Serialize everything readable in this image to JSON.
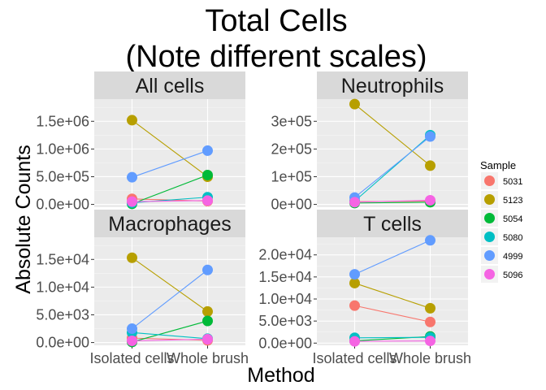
{
  "chart_data": {
    "type": "scatter",
    "title_lines": [
      "Total Cells",
      "(Note different scales)"
    ],
    "xlabel": "Method",
    "ylabel": "Absolute Counts",
    "categories": [
      "Isolated cells",
      "Whole brush"
    ],
    "legend": {
      "title": "Sample",
      "position": "right",
      "entries": [
        {
          "name": "5031",
          "color": "#F8766D"
        },
        {
          "name": "5123",
          "color": "#B79F00"
        },
        {
          "name": "5054",
          "color": "#00BA38"
        },
        {
          "name": "5080",
          "color": "#00BFC4"
        },
        {
          "name": "4999",
          "color": "#619CFF"
        },
        {
          "name": "5096",
          "color": "#F564E3"
        }
      ]
    },
    "panels": [
      {
        "title": "All cells",
        "ylim": [
          -50000,
          1900000
        ],
        "yticks": [
          0,
          500000,
          1000000,
          1500000
        ],
        "ytick_labels": [
          "0.0e+00",
          "5.0e+05",
          "1.0e+06",
          "1.5e+06"
        ],
        "series": [
          {
            "sample": "5031",
            "values": [
              100000,
              60000
            ]
          },
          {
            "sample": "5123",
            "values": [
              1520000,
              500000
            ]
          },
          {
            "sample": "5054",
            "values": [
              10000,
              530000
            ]
          },
          {
            "sample": "5080",
            "values": [
              30000,
              130000
            ]
          },
          {
            "sample": "4999",
            "values": [
              490000,
              970000
            ]
          },
          {
            "sample": "5096",
            "values": [
              50000,
              70000
            ]
          }
        ]
      },
      {
        "title": "Neutrophils",
        "ylim": [
          -10000,
          380000
        ],
        "yticks": [
          0,
          100000,
          200000,
          300000
        ],
        "ytick_labels": [
          "0e+00",
          "1e+05",
          "2e+05",
          "3e+05"
        ],
        "series": [
          {
            "sample": "5031",
            "values": [
              10000,
              12000
            ]
          },
          {
            "sample": "5123",
            "values": [
              362000,
              140000
            ]
          },
          {
            "sample": "5054",
            "values": [
              5000,
              8000
            ]
          },
          {
            "sample": "5080",
            "values": [
              12000,
              250000
            ]
          },
          {
            "sample": "4999",
            "values": [
              25000,
              245000
            ]
          },
          {
            "sample": "5096",
            "values": [
              8000,
              15000
            ]
          }
        ]
      },
      {
        "title": "Macrophages",
        "ylim": [
          -500,
          19000
        ],
        "yticks": [
          0,
          5000,
          10000,
          15000
        ],
        "ytick_labels": [
          "0.0e+00",
          "5.0e+03",
          "1.0e+04",
          "1.5e+04"
        ],
        "series": [
          {
            "sample": "5031",
            "values": [
              800,
              400
            ]
          },
          {
            "sample": "5123",
            "values": [
              15300,
              5600
            ]
          },
          {
            "sample": "5054",
            "values": [
              100,
              3900
            ]
          },
          {
            "sample": "5080",
            "values": [
              1800,
              700
            ]
          },
          {
            "sample": "4999",
            "values": [
              2500,
              13100
            ]
          },
          {
            "sample": "5096",
            "values": [
              300,
              600
            ]
          }
        ]
      },
      {
        "title": "T cells",
        "ylim": [
          -500,
          24000
        ],
        "yticks": [
          0,
          5000,
          10000,
          15000,
          20000
        ],
        "ytick_labels": [
          "0.0e+00",
          "5.0e+03",
          "1.0e+04",
          "1.5e+04",
          "2.0e+04"
        ],
        "series": [
          {
            "sample": "5031",
            "values": [
              8500,
              4800
            ]
          },
          {
            "sample": "5123",
            "values": [
              13600,
              7900
            ]
          },
          {
            "sample": "5054",
            "values": [
              500,
              1500
            ]
          },
          {
            "sample": "5080",
            "values": [
              1200,
              1300
            ]
          },
          {
            "sample": "4999",
            "values": [
              15600,
              23300
            ]
          },
          {
            "sample": "5096",
            "values": [
              400,
              500
            ]
          }
        ]
      }
    ]
  }
}
